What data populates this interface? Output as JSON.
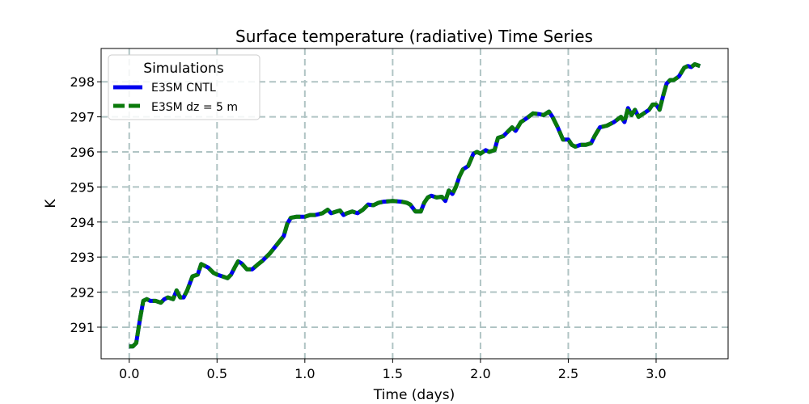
{
  "chart_data": {
    "type": "line",
    "title": "Surface temperature (radiative) Time Series",
    "xlabel": "Time (days)",
    "ylabel": "K",
    "xlim": [
      -0.16,
      3.41
    ],
    "ylim": [
      290.1,
      298.95
    ],
    "xticks": [
      0.0,
      0.5,
      1.0,
      1.5,
      2.0,
      2.5,
      3.0
    ],
    "xtick_labels": [
      "0.0",
      "0.5",
      "1.0",
      "1.5",
      "2.0",
      "2.5",
      "3.0"
    ],
    "yticks": [
      291,
      292,
      293,
      294,
      295,
      296,
      297,
      298
    ],
    "ytick_labels": [
      "291",
      "292",
      "293",
      "294",
      "295",
      "296",
      "297",
      "298"
    ],
    "grid": true,
    "legend": {
      "title": "Simulations",
      "placement": "top-left"
    },
    "series": [
      {
        "name": "E3SM CNTL",
        "color": "#0000ee",
        "linestyle": "solid",
        "x": [
          0.0,
          0.02,
          0.04,
          0.06,
          0.08,
          0.1,
          0.12,
          0.15,
          0.18,
          0.2,
          0.22,
          0.25,
          0.27,
          0.29,
          0.31,
          0.33,
          0.36,
          0.39,
          0.41,
          0.43,
          0.45,
          0.48,
          0.5,
          0.53,
          0.56,
          0.58,
          0.6,
          0.62,
          0.64,
          0.67,
          0.7,
          0.73,
          0.76,
          0.8,
          0.84,
          0.88,
          0.9,
          0.92,
          0.95,
          1.0,
          1.03,
          1.06,
          1.1,
          1.13,
          1.15,
          1.18,
          1.2,
          1.22,
          1.24,
          1.27,
          1.3,
          1.33,
          1.36,
          1.39,
          1.42,
          1.45,
          1.5,
          1.55,
          1.58,
          1.6,
          1.63,
          1.66,
          1.68,
          1.7,
          1.72,
          1.75,
          1.78,
          1.8,
          1.82,
          1.84,
          1.86,
          1.88,
          1.9,
          1.93,
          1.96,
          1.98,
          2.0,
          2.03,
          2.05,
          2.08,
          2.1,
          2.13,
          2.15,
          2.18,
          2.2,
          2.23,
          2.26,
          2.3,
          2.33,
          2.36,
          2.39,
          2.41,
          2.44,
          2.47,
          2.5,
          2.52,
          2.54,
          2.57,
          2.6,
          2.63,
          2.65,
          2.68,
          2.72,
          2.76,
          2.8,
          2.82,
          2.84,
          2.86,
          2.88,
          2.9,
          2.93,
          2.96,
          2.98,
          3.0,
          3.02,
          3.04,
          3.06,
          3.08,
          3.1,
          3.13,
          3.16,
          3.18,
          3.2,
          3.22,
          3.25
        ],
        "y": [
          290.45,
          290.45,
          290.55,
          291.2,
          291.75,
          291.8,
          291.75,
          291.75,
          291.7,
          291.8,
          291.85,
          291.8,
          292.05,
          291.85,
          291.85,
          292.05,
          292.45,
          292.5,
          292.8,
          292.75,
          292.7,
          292.55,
          292.5,
          292.45,
          292.4,
          292.5,
          292.7,
          292.88,
          292.82,
          292.65,
          292.65,
          292.78,
          292.9,
          293.1,
          293.35,
          293.6,
          293.95,
          294.12,
          294.15,
          294.15,
          294.2,
          294.2,
          294.25,
          294.35,
          294.25,
          294.3,
          294.33,
          294.2,
          294.25,
          294.3,
          294.25,
          294.35,
          294.5,
          294.48,
          294.55,
          294.58,
          294.6,
          294.58,
          294.55,
          294.5,
          294.3,
          294.3,
          294.55,
          294.7,
          294.75,
          294.7,
          294.72,
          294.6,
          294.9,
          294.8,
          295.0,
          295.3,
          295.5,
          295.6,
          295.95,
          296.0,
          295.95,
          296.05,
          296.0,
          296.05,
          296.4,
          296.45,
          296.55,
          296.7,
          296.6,
          296.85,
          296.95,
          297.1,
          297.08,
          297.05,
          297.15,
          297.0,
          296.7,
          296.35,
          296.35,
          296.2,
          296.15,
          296.2,
          296.2,
          296.25,
          296.45,
          296.7,
          296.75,
          296.85,
          297.0,
          296.85,
          297.25,
          297.05,
          297.2,
          297.0,
          297.1,
          297.2,
          297.35,
          297.35,
          297.2,
          297.6,
          297.95,
          298.05,
          298.05,
          298.15,
          298.4,
          298.45,
          298.42,
          298.5,
          298.45
        ]
      },
      {
        "name": "E3SM dz = 5 m",
        "color": "#0b7a0b",
        "linestyle": "dashed",
        "x": [
          0.0,
          0.02,
          0.04,
          0.06,
          0.08,
          0.1,
          0.12,
          0.15,
          0.18,
          0.2,
          0.22,
          0.25,
          0.27,
          0.29,
          0.31,
          0.33,
          0.36,
          0.39,
          0.41,
          0.43,
          0.45,
          0.48,
          0.5,
          0.53,
          0.56,
          0.58,
          0.6,
          0.62,
          0.64,
          0.67,
          0.7,
          0.73,
          0.76,
          0.8,
          0.84,
          0.88,
          0.9,
          0.92,
          0.95,
          1.0,
          1.03,
          1.06,
          1.1,
          1.13,
          1.15,
          1.18,
          1.2,
          1.22,
          1.24,
          1.27,
          1.3,
          1.33,
          1.36,
          1.39,
          1.42,
          1.45,
          1.5,
          1.55,
          1.58,
          1.6,
          1.63,
          1.66,
          1.68,
          1.7,
          1.72,
          1.75,
          1.78,
          1.8,
          1.82,
          1.84,
          1.86,
          1.88,
          1.9,
          1.93,
          1.96,
          1.98,
          2.0,
          2.03,
          2.05,
          2.08,
          2.1,
          2.13,
          2.15,
          2.18,
          2.2,
          2.23,
          2.26,
          2.3,
          2.33,
          2.36,
          2.39,
          2.41,
          2.44,
          2.47,
          2.5,
          2.52,
          2.54,
          2.57,
          2.6,
          2.63,
          2.65,
          2.68,
          2.72,
          2.76,
          2.8,
          2.82,
          2.84,
          2.86,
          2.88,
          2.9,
          2.93,
          2.96,
          2.98,
          3.0,
          3.02,
          3.04,
          3.06,
          3.08,
          3.1,
          3.13,
          3.16,
          3.18,
          3.2,
          3.22,
          3.25
        ],
        "y": [
          290.45,
          290.45,
          290.55,
          291.2,
          291.75,
          291.8,
          291.75,
          291.75,
          291.7,
          291.8,
          291.85,
          291.8,
          292.05,
          291.85,
          291.85,
          292.05,
          292.45,
          292.5,
          292.8,
          292.75,
          292.7,
          292.55,
          292.5,
          292.45,
          292.4,
          292.5,
          292.7,
          292.88,
          292.82,
          292.65,
          292.65,
          292.78,
          292.9,
          293.1,
          293.35,
          293.6,
          293.95,
          294.12,
          294.15,
          294.15,
          294.2,
          294.2,
          294.25,
          294.35,
          294.25,
          294.3,
          294.33,
          294.2,
          294.25,
          294.3,
          294.25,
          294.35,
          294.5,
          294.48,
          294.55,
          294.58,
          294.6,
          294.58,
          294.55,
          294.5,
          294.3,
          294.3,
          294.55,
          294.7,
          294.75,
          294.7,
          294.72,
          294.6,
          294.9,
          294.8,
          295.0,
          295.3,
          295.5,
          295.6,
          295.95,
          296.0,
          295.95,
          296.05,
          296.0,
          296.05,
          296.4,
          296.45,
          296.55,
          296.7,
          296.6,
          296.85,
          296.95,
          297.1,
          297.08,
          297.05,
          297.15,
          297.0,
          296.7,
          296.35,
          296.35,
          296.2,
          296.15,
          296.2,
          296.2,
          296.25,
          296.45,
          296.7,
          296.75,
          296.85,
          297.0,
          296.85,
          297.25,
          297.05,
          297.2,
          297.0,
          297.1,
          297.2,
          297.35,
          297.35,
          297.2,
          297.6,
          297.95,
          298.05,
          298.05,
          298.15,
          298.4,
          298.45,
          298.42,
          298.5,
          298.45
        ]
      }
    ]
  }
}
